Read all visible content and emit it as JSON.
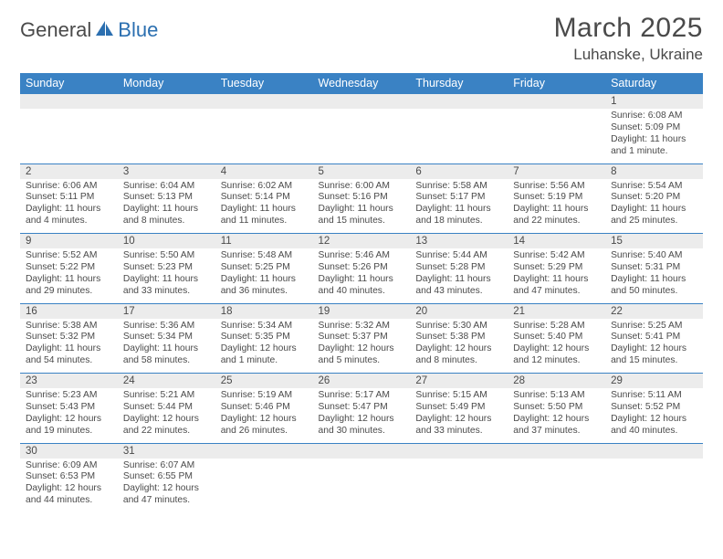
{
  "brand": {
    "part1": "General",
    "part2": "Blue"
  },
  "title": "March 2025",
  "location": "Luhanske, Ukraine",
  "colors": {
    "header_bg": "#3a82c4",
    "daynum_bg": "#ececec",
    "border": "#3a82c4",
    "text": "#4a4a4a",
    "brand_accent": "#2b6fb0"
  },
  "day_names": [
    "Sunday",
    "Monday",
    "Tuesday",
    "Wednesday",
    "Thursday",
    "Friday",
    "Saturday"
  ],
  "weeks": [
    [
      null,
      null,
      null,
      null,
      null,
      null,
      {
        "n": "1",
        "sr": "Sunrise: 6:08 AM",
        "ss": "Sunset: 5:09 PM",
        "dl": "Daylight: 11 hours and 1 minute."
      }
    ],
    [
      {
        "n": "2",
        "sr": "Sunrise: 6:06 AM",
        "ss": "Sunset: 5:11 PM",
        "dl": "Daylight: 11 hours and 4 minutes."
      },
      {
        "n": "3",
        "sr": "Sunrise: 6:04 AM",
        "ss": "Sunset: 5:13 PM",
        "dl": "Daylight: 11 hours and 8 minutes."
      },
      {
        "n": "4",
        "sr": "Sunrise: 6:02 AM",
        "ss": "Sunset: 5:14 PM",
        "dl": "Daylight: 11 hours and 11 minutes."
      },
      {
        "n": "5",
        "sr": "Sunrise: 6:00 AM",
        "ss": "Sunset: 5:16 PM",
        "dl": "Daylight: 11 hours and 15 minutes."
      },
      {
        "n": "6",
        "sr": "Sunrise: 5:58 AM",
        "ss": "Sunset: 5:17 PM",
        "dl": "Daylight: 11 hours and 18 minutes."
      },
      {
        "n": "7",
        "sr": "Sunrise: 5:56 AM",
        "ss": "Sunset: 5:19 PM",
        "dl": "Daylight: 11 hours and 22 minutes."
      },
      {
        "n": "8",
        "sr": "Sunrise: 5:54 AM",
        "ss": "Sunset: 5:20 PM",
        "dl": "Daylight: 11 hours and 25 minutes."
      }
    ],
    [
      {
        "n": "9",
        "sr": "Sunrise: 5:52 AM",
        "ss": "Sunset: 5:22 PM",
        "dl": "Daylight: 11 hours and 29 minutes."
      },
      {
        "n": "10",
        "sr": "Sunrise: 5:50 AM",
        "ss": "Sunset: 5:23 PM",
        "dl": "Daylight: 11 hours and 33 minutes."
      },
      {
        "n": "11",
        "sr": "Sunrise: 5:48 AM",
        "ss": "Sunset: 5:25 PM",
        "dl": "Daylight: 11 hours and 36 minutes."
      },
      {
        "n": "12",
        "sr": "Sunrise: 5:46 AM",
        "ss": "Sunset: 5:26 PM",
        "dl": "Daylight: 11 hours and 40 minutes."
      },
      {
        "n": "13",
        "sr": "Sunrise: 5:44 AM",
        "ss": "Sunset: 5:28 PM",
        "dl": "Daylight: 11 hours and 43 minutes."
      },
      {
        "n": "14",
        "sr": "Sunrise: 5:42 AM",
        "ss": "Sunset: 5:29 PM",
        "dl": "Daylight: 11 hours and 47 minutes."
      },
      {
        "n": "15",
        "sr": "Sunrise: 5:40 AM",
        "ss": "Sunset: 5:31 PM",
        "dl": "Daylight: 11 hours and 50 minutes."
      }
    ],
    [
      {
        "n": "16",
        "sr": "Sunrise: 5:38 AM",
        "ss": "Sunset: 5:32 PM",
        "dl": "Daylight: 11 hours and 54 minutes."
      },
      {
        "n": "17",
        "sr": "Sunrise: 5:36 AM",
        "ss": "Sunset: 5:34 PM",
        "dl": "Daylight: 11 hours and 58 minutes."
      },
      {
        "n": "18",
        "sr": "Sunrise: 5:34 AM",
        "ss": "Sunset: 5:35 PM",
        "dl": "Daylight: 12 hours and 1 minute."
      },
      {
        "n": "19",
        "sr": "Sunrise: 5:32 AM",
        "ss": "Sunset: 5:37 PM",
        "dl": "Daylight: 12 hours and 5 minutes."
      },
      {
        "n": "20",
        "sr": "Sunrise: 5:30 AM",
        "ss": "Sunset: 5:38 PM",
        "dl": "Daylight: 12 hours and 8 minutes."
      },
      {
        "n": "21",
        "sr": "Sunrise: 5:28 AM",
        "ss": "Sunset: 5:40 PM",
        "dl": "Daylight: 12 hours and 12 minutes."
      },
      {
        "n": "22",
        "sr": "Sunrise: 5:25 AM",
        "ss": "Sunset: 5:41 PM",
        "dl": "Daylight: 12 hours and 15 minutes."
      }
    ],
    [
      {
        "n": "23",
        "sr": "Sunrise: 5:23 AM",
        "ss": "Sunset: 5:43 PM",
        "dl": "Daylight: 12 hours and 19 minutes."
      },
      {
        "n": "24",
        "sr": "Sunrise: 5:21 AM",
        "ss": "Sunset: 5:44 PM",
        "dl": "Daylight: 12 hours and 22 minutes."
      },
      {
        "n": "25",
        "sr": "Sunrise: 5:19 AM",
        "ss": "Sunset: 5:46 PM",
        "dl": "Daylight: 12 hours and 26 minutes."
      },
      {
        "n": "26",
        "sr": "Sunrise: 5:17 AM",
        "ss": "Sunset: 5:47 PM",
        "dl": "Daylight: 12 hours and 30 minutes."
      },
      {
        "n": "27",
        "sr": "Sunrise: 5:15 AM",
        "ss": "Sunset: 5:49 PM",
        "dl": "Daylight: 12 hours and 33 minutes."
      },
      {
        "n": "28",
        "sr": "Sunrise: 5:13 AM",
        "ss": "Sunset: 5:50 PM",
        "dl": "Daylight: 12 hours and 37 minutes."
      },
      {
        "n": "29",
        "sr": "Sunrise: 5:11 AM",
        "ss": "Sunset: 5:52 PM",
        "dl": "Daylight: 12 hours and 40 minutes."
      }
    ],
    [
      {
        "n": "30",
        "sr": "Sunrise: 6:09 AM",
        "ss": "Sunset: 6:53 PM",
        "dl": "Daylight: 12 hours and 44 minutes."
      },
      {
        "n": "31",
        "sr": "Sunrise: 6:07 AM",
        "ss": "Sunset: 6:55 PM",
        "dl": "Daylight: 12 hours and 47 minutes."
      },
      null,
      null,
      null,
      null,
      null
    ]
  ]
}
